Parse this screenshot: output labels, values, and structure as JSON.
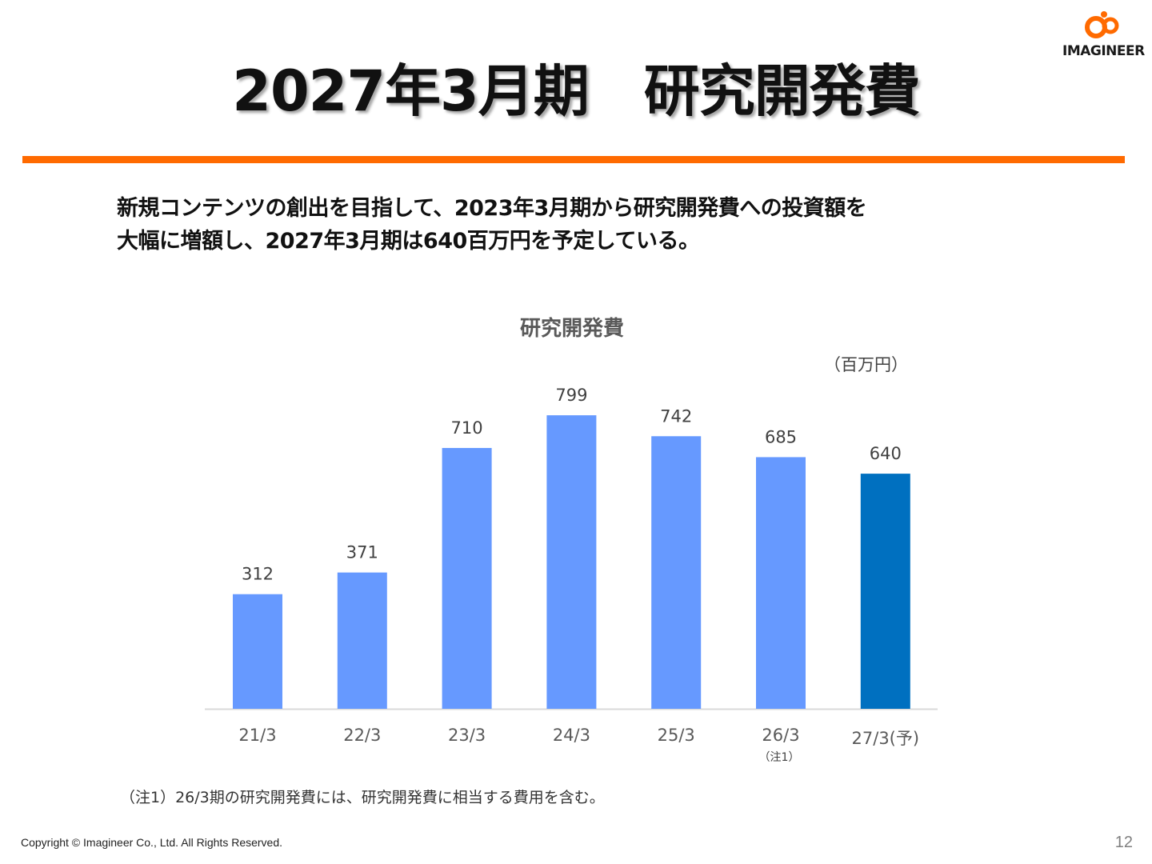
{
  "brand": {
    "logo_text": "IMAGINEER",
    "accent_color": "#ff6a00"
  },
  "title": "2027年3月期　研究開発費",
  "lead": {
    "line1": "新規コンテンツの創出を目指して、2023年3月期から研究開発費への投資額を",
    "line2": "大幅に増額し、2027年3月期は640百万円を予定している。"
  },
  "chart_data": {
    "type": "bar",
    "title": "研究開発費",
    "unit_label": "（百万円）",
    "categories": [
      "21/3",
      "22/3",
      "23/3",
      "24/3",
      "25/3",
      "26/3",
      "27/3(予)"
    ],
    "category_notes": [
      "",
      "",
      "",
      "",
      "",
      "（注1）",
      ""
    ],
    "values": [
      312,
      371,
      710,
      799,
      742,
      685,
      640
    ],
    "colors": [
      "#6699ff",
      "#6699ff",
      "#6699ff",
      "#6699ff",
      "#6699ff",
      "#6699ff",
      "#0070c0"
    ],
    "ylim": [
      0,
      900
    ],
    "grid": false,
    "legend": "none"
  },
  "footnote": "（注1）26/3期の研究開発費には、研究開発費に相当する費用を含む。",
  "footer": {
    "copyright": "Copyright ©  Imagineer Co., Ltd. All Rights Reserved.",
    "page_number": "12"
  }
}
